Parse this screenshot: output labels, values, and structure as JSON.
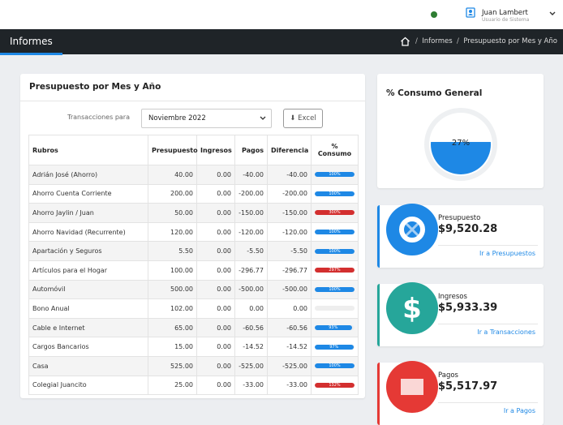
{
  "topbar": {
    "user_name": "Juan Lambert",
    "user_role": "Usuario de Sistema"
  },
  "navbar": {
    "title": "Informes",
    "breadcrumb": [
      "Informes",
      "Presupuesto por Mes y Año"
    ]
  },
  "report": {
    "title": "Presupuesto por Mes y Año",
    "filter_label": "Transacciones para",
    "month": "Noviembre 2022",
    "excel_button": "Excel",
    "columns": [
      "Rubros",
      "Presupuesto",
      "Ingresos",
      "Pagos",
      "Diferencia",
      "% Consumo"
    ],
    "rows": [
      [
        "Adrián José (Ahorro)",
        "40.00",
        "0.00",
        "-40.00",
        "-40.00",
        "100%"
      ],
      [
        "Ahorro Cuenta Corriente",
        "200.00",
        "0.00",
        "-200.00",
        "-200.00",
        "100%"
      ],
      [
        "Ahorro Jaylin / Juan",
        "50.00",
        "0.00",
        "-150.00",
        "-150.00",
        "300%"
      ],
      [
        "Ahorro Navidad (Recurrente)",
        "120.00",
        "0.00",
        "-120.00",
        "-120.00",
        "100%"
      ],
      [
        "Apartación y Seguros",
        "5.50",
        "0.00",
        "-5.50",
        "-5.50",
        "100%"
      ],
      [
        "Artículos para el Hogar",
        "100.00",
        "0.00",
        "-296.77",
        "-296.77",
        "297%"
      ],
      [
        "Automóvil",
        "500.00",
        "0.00",
        "-500.00",
        "-500.00",
        "100%"
      ],
      [
        "Bono Anual",
        "102.00",
        "0.00",
        "0.00",
        "0.00",
        null
      ],
      [
        "Cable e Internet",
        "65.00",
        "0.00",
        "-60.56",
        "-60.56",
        "93%"
      ],
      [
        "Cargos Bancarios",
        "15.00",
        "0.00",
        "-14.52",
        "-14.52",
        "97%"
      ],
      [
        "Casa",
        "525.00",
        "0.00",
        "-525.00",
        "-525.00",
        "100%"
      ],
      [
        "Colegial Juancito",
        "25.00",
        "0.00",
        "-33.00",
        "-33.00",
        "132%"
      ]
    ]
  },
  "summary": {
    "title": "% Consumo General",
    "value_label": "27%",
    "cards": [
      {
        "label": "Presupuesto",
        "amount": "$9,520.28",
        "link": "Ir a Presupuestos",
        "color": "#1e88e5"
      },
      {
        "label": "Ingresos",
        "amount": "$5,933.39",
        "link": "Ir a Transacciones",
        "color": "#26a69a"
      },
      {
        "label": "Pagos",
        "amount": "$5,517.97",
        "link": "Ir a Pagos",
        "color": "#e53935"
      }
    ]
  }
}
